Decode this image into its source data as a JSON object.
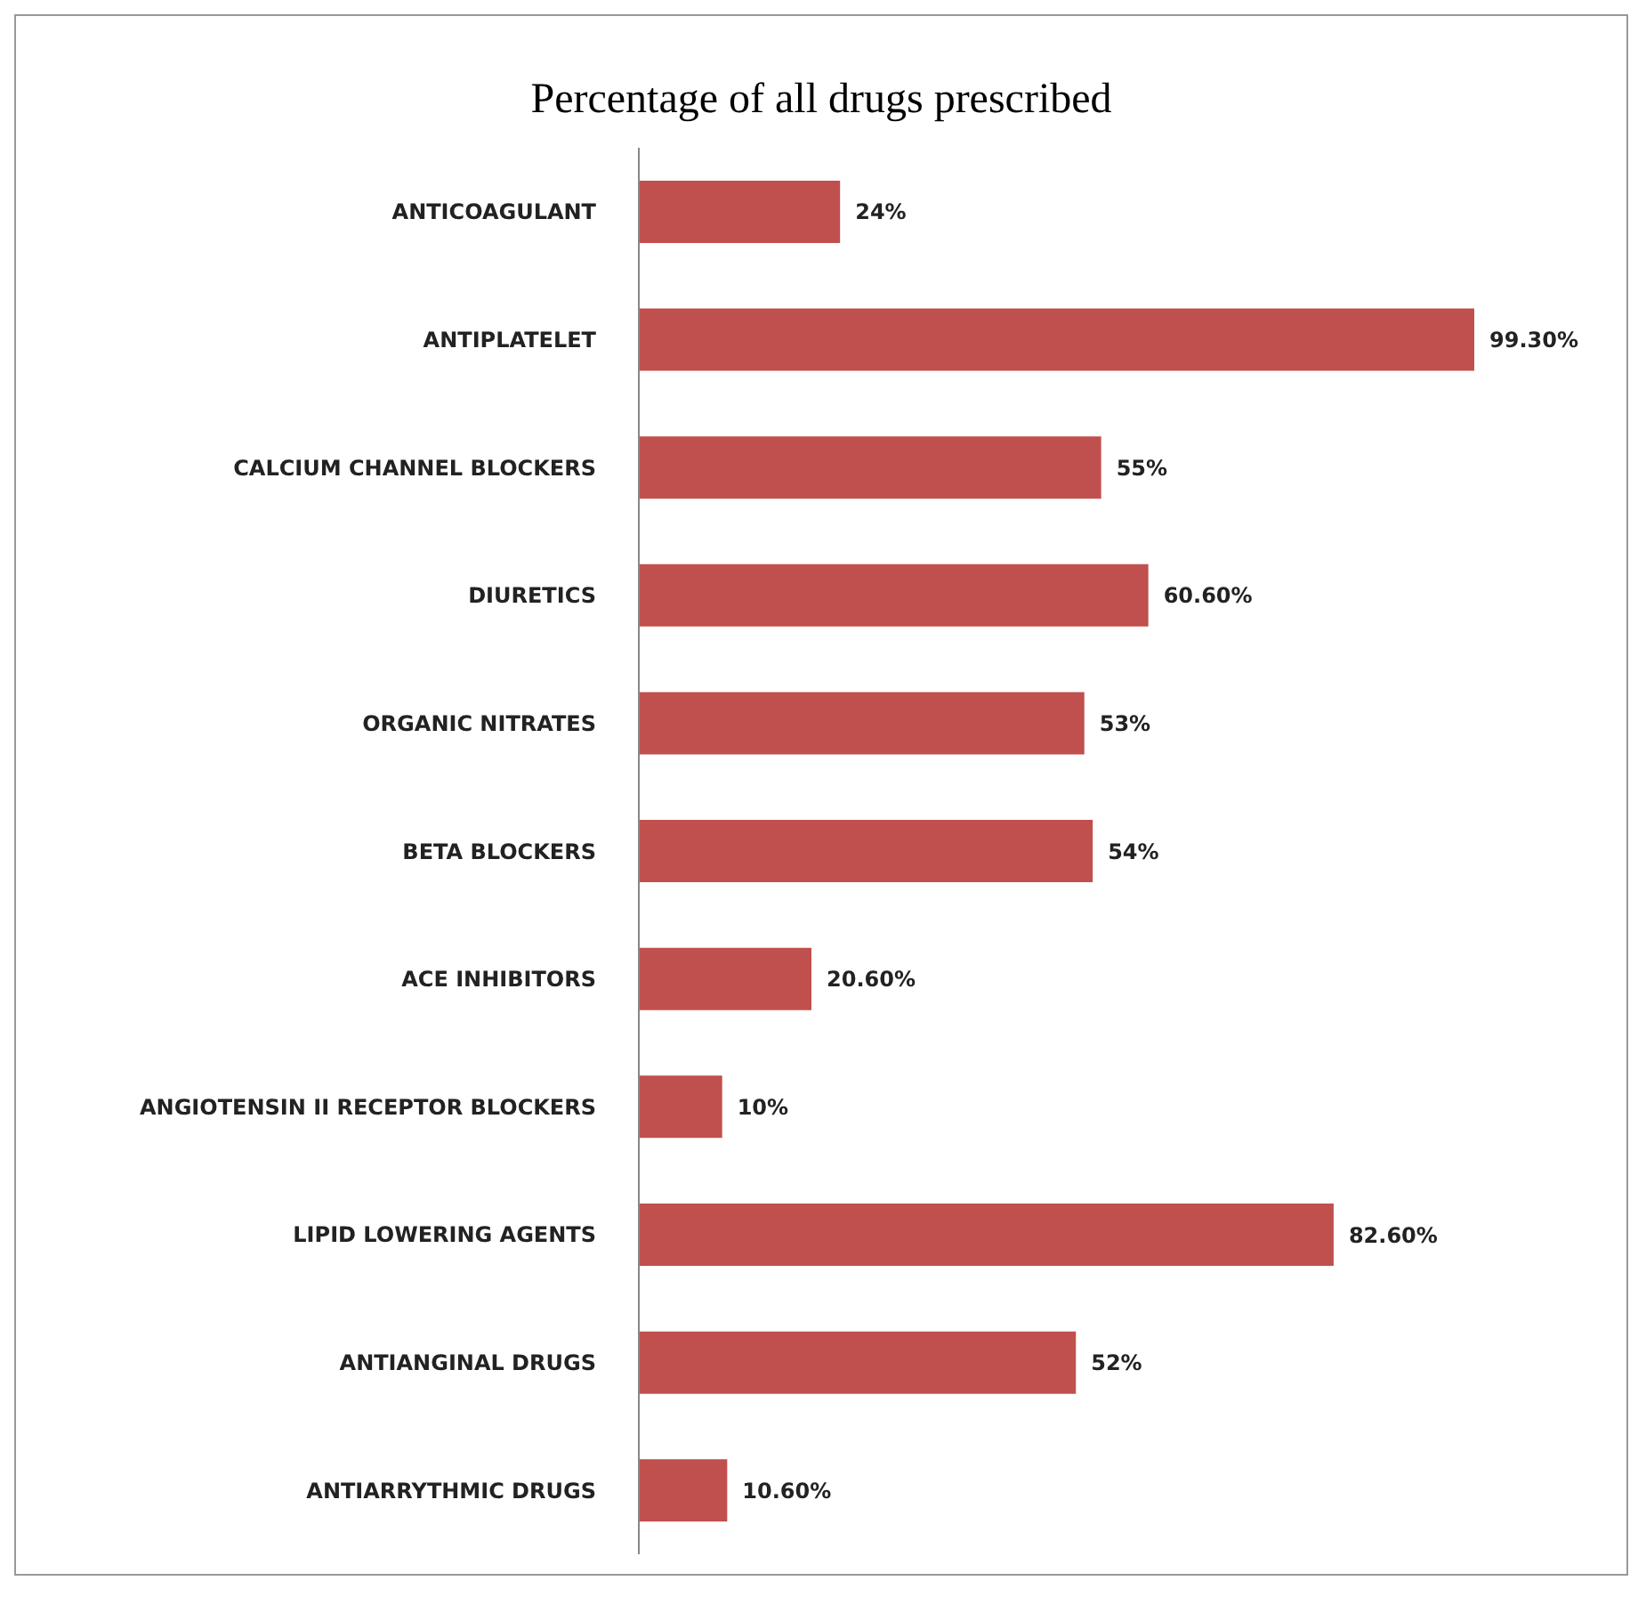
{
  "chart_data": {
    "type": "bar",
    "orientation": "horizontal",
    "title": "Percentage of all drugs prescribed",
    "categories": [
      "ANTICOAGULANT",
      "ANTIPLATELET",
      "CALCIUM CHANNEL BLOCKERS",
      "DIURETICS",
      "ORGANIC NITRATES",
      "BETA BLOCKERS",
      "ACE INHIBITORS",
      "ANGIOTENSIN II RECEPTOR BLOCKERS",
      "LIPID LOWERING AGENTS",
      "ANTIANGINAL DRUGS",
      "ANTIARRYTHMIC DRUGS"
    ],
    "values": [
      24,
      99.3,
      55,
      60.6,
      53,
      54,
      20.6,
      10,
      82.6,
      52,
      10.6
    ],
    "value_labels": [
      "24%",
      "99.30%",
      "55%",
      "60.60%",
      "53%",
      "54%",
      "20.60%",
      "10%",
      "82.60%",
      "52%",
      "10.60%"
    ],
    "color": "#c0504d",
    "tick_labels": "y"
  }
}
